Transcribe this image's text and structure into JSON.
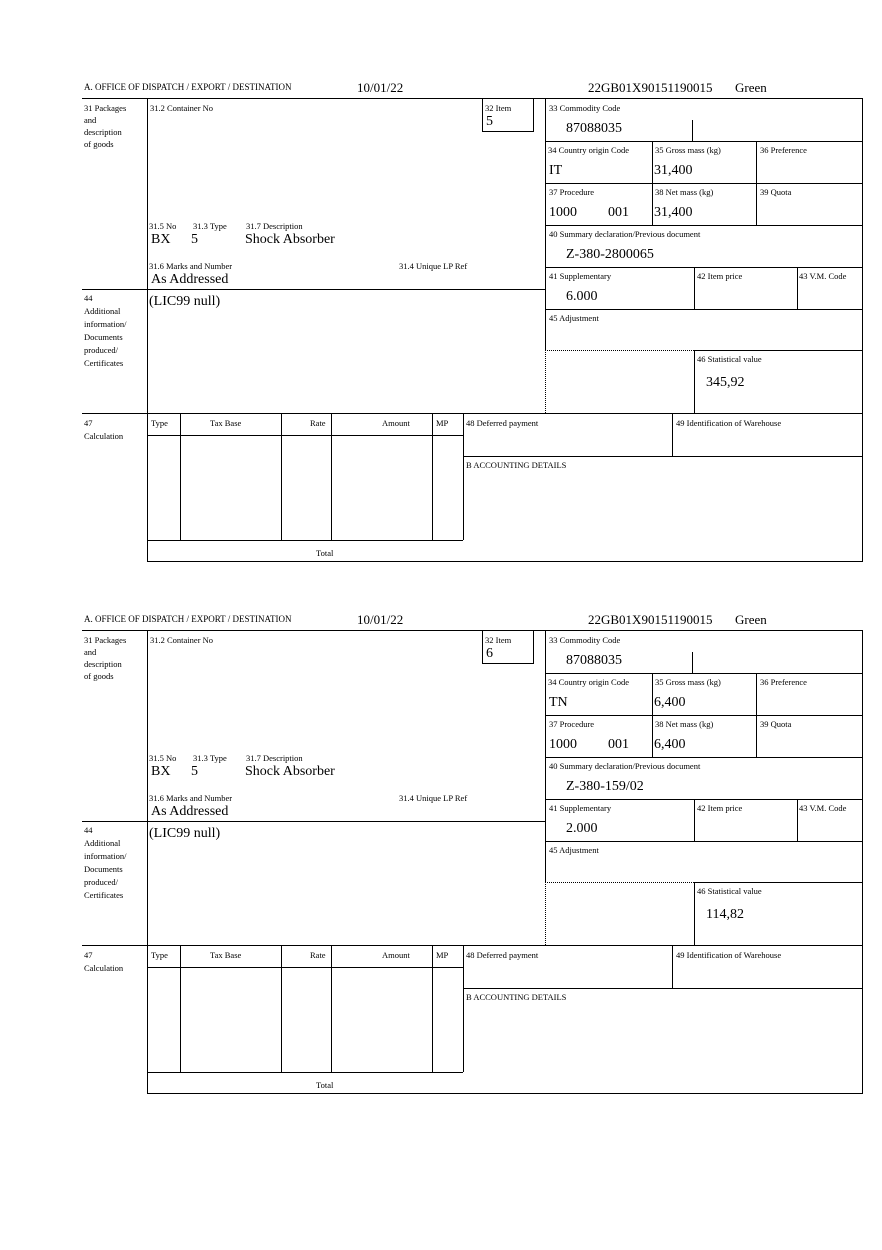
{
  "labels": {
    "office": "A.  OFFICE OF DISPATCH / EXPORT / DESTINATION",
    "box31": [
      "31 Packages",
      "and",
      "description",
      "of goods"
    ],
    "container_no": "31.2 Container No",
    "item": "32 Item",
    "commodity": "33 Commodity Code",
    "country_origin": "34 Country origin Code",
    "gross_mass": "35 Gross mass (kg)",
    "preference": "36 Preference",
    "procedure": "37 Procedure",
    "net_mass": "38 Net mass (kg)",
    "quota": "39 Quota",
    "summary_decl": "40 Summary declaration/Previous document",
    "pkg_no": "31.5 No",
    "pkg_type": "31.3 Type",
    "description": "31.7 Description",
    "marks": "31.6 Marks and Number",
    "unique_ref": "31.4 Unique LP Ref",
    "supplementary": "41 Supplementary",
    "item_price": "42 Item price",
    "vm_code": "43 V.M. Code",
    "box44": [
      "44",
      "Additional",
      "information/",
      "Documents",
      "produced/",
      "Certificates"
    ],
    "adjustment": "45 Adjustment",
    "statistical": "46 Statistical value",
    "box47": [
      "47",
      "Calculation"
    ],
    "calc_cols": [
      "Type",
      "Tax Base",
      "Rate",
      "Amount",
      "MP"
    ],
    "deferred": "48 Deferred payment",
    "warehouse": "49 Identification of Warehouse",
    "accounting": "B ACCOUNTING DETAILS",
    "total": "Total"
  },
  "forms": [
    {
      "date": "10/01/22",
      "reference": "22GB01X90151190015",
      "route": "Green",
      "item": "5",
      "commodity_code": "87088035",
      "country_origin": "IT",
      "gross_mass": "31,400",
      "procedure": "1000",
      "procedure_ext": "001",
      "net_mass": "31,400",
      "previous_document": "Z-380-2800065",
      "pkg_no": "BX",
      "pkg_type": "5",
      "description": "Shock Absorber",
      "marks": "As Addressed",
      "additional_info": "(LIC99 null)",
      "supplementary": "6.000",
      "statistical_value": "345,92"
    },
    {
      "date": "10/01/22",
      "reference": "22GB01X90151190015",
      "route": "Green",
      "item": "6",
      "commodity_code": "87088035",
      "country_origin": "TN",
      "gross_mass": "6,400",
      "procedure": "1000",
      "procedure_ext": "001",
      "net_mass": "6,400",
      "previous_document": "Z-380-159/02",
      "pkg_no": "BX",
      "pkg_type": "5",
      "description": "Shock Absorber",
      "marks": "As Addressed",
      "additional_info": "(LIC99 null)",
      "supplementary": "2.000",
      "statistical_value": "114,82"
    }
  ]
}
